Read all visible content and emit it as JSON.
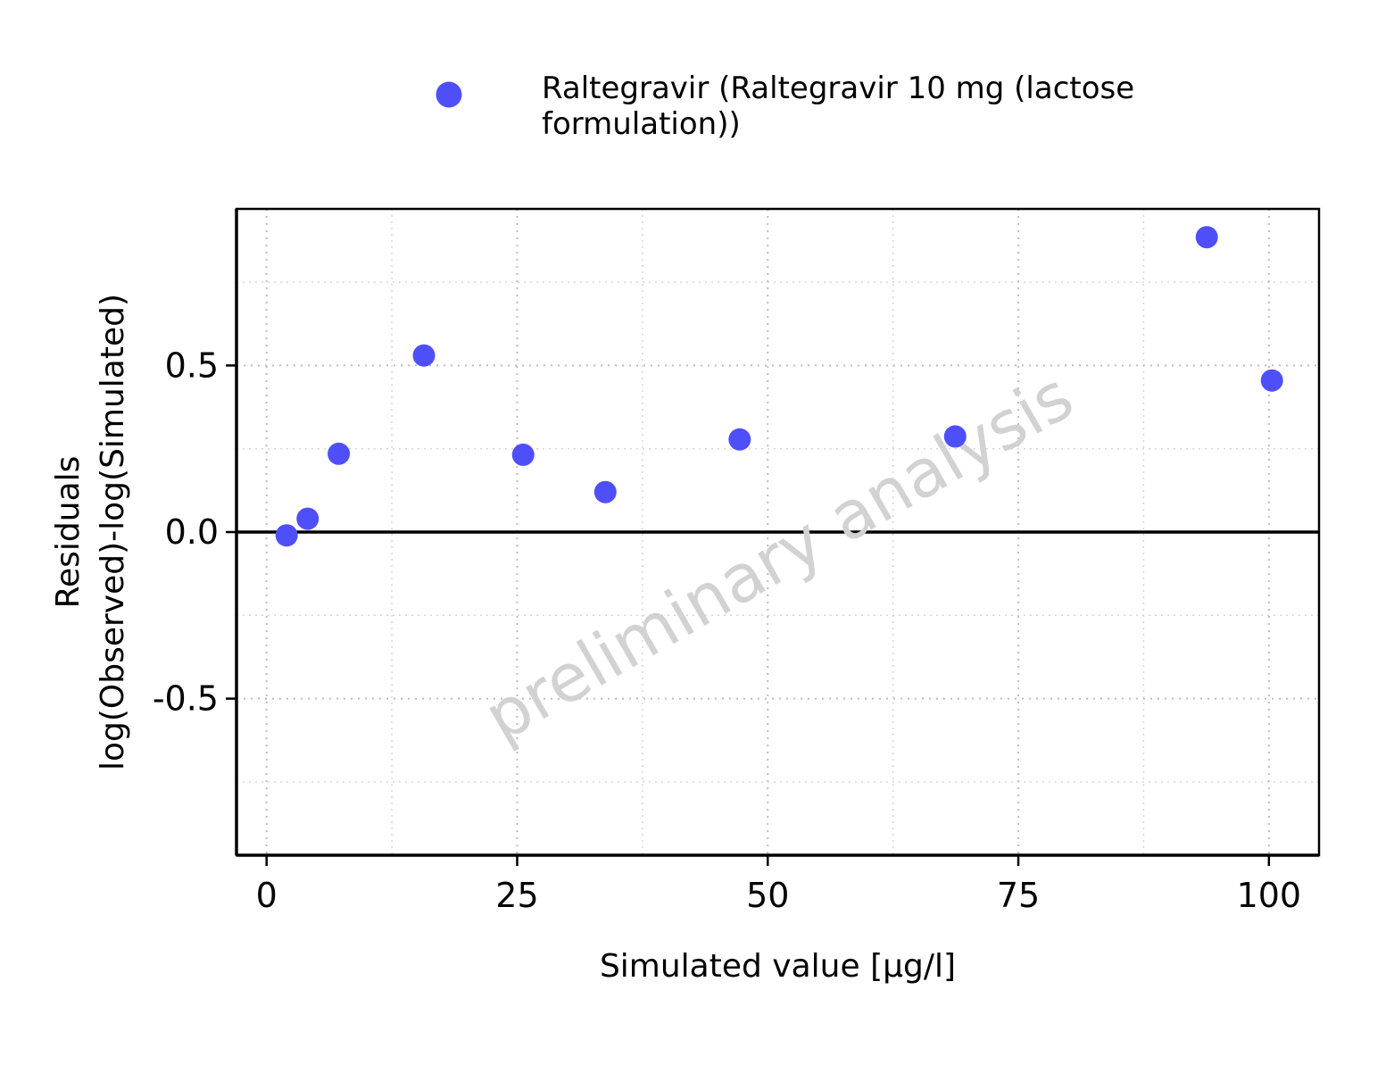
{
  "chart_data": {
    "type": "scatter",
    "legend": {
      "position": "top",
      "entries": [
        {
          "label_lines": [
            "Raltegravir (Raltegravir 10 mg (lactose",
            "formulation))"
          ],
          "color": "#4f4ffa",
          "marker": "circle"
        }
      ]
    },
    "series": [
      {
        "name": "Raltegravir (Raltegravir 10 mg (lactose formulation))",
        "color": "#4f4ffa",
        "points": [
          {
            "x": 2.0,
            "y": -0.01
          },
          {
            "x": 4.1,
            "y": 0.04
          },
          {
            "x": 7.2,
            "y": 0.235
          },
          {
            "x": 15.7,
            "y": 0.53
          },
          {
            "x": 25.6,
            "y": 0.232
          },
          {
            "x": 33.8,
            "y": 0.12
          },
          {
            "x": 47.2,
            "y": 0.278
          },
          {
            "x": 68.7,
            "y": 0.287
          },
          {
            "x": 93.8,
            "y": 0.885
          },
          {
            "x": 100.3,
            "y": 0.455
          }
        ]
      }
    ],
    "xlabel": "Simulated value [µg/l]",
    "ylabel_lines": [
      "Residuals",
      "log(Observed)-log(Simulated)"
    ],
    "xlim": [
      -3,
      105
    ],
    "ylim": [
      -0.97,
      0.97
    ],
    "xticks": [
      0,
      25,
      50,
      75,
      100
    ],
    "xtick_labels": [
      "0",
      "25",
      "50",
      "75",
      "100"
    ],
    "yticks": [
      0.5,
      0.0,
      -0.5
    ],
    "ytick_labels": [
      "0.5",
      "0.0",
      "-0.5"
    ],
    "x_minor_grid": [
      12.5,
      37.5,
      62.5,
      87.5
    ],
    "y_minor_grid": [
      0.75,
      0.25,
      -0.25,
      -0.75
    ],
    "reference_line_y": 0,
    "grid": "dotted",
    "watermark": "preliminary analysis"
  }
}
